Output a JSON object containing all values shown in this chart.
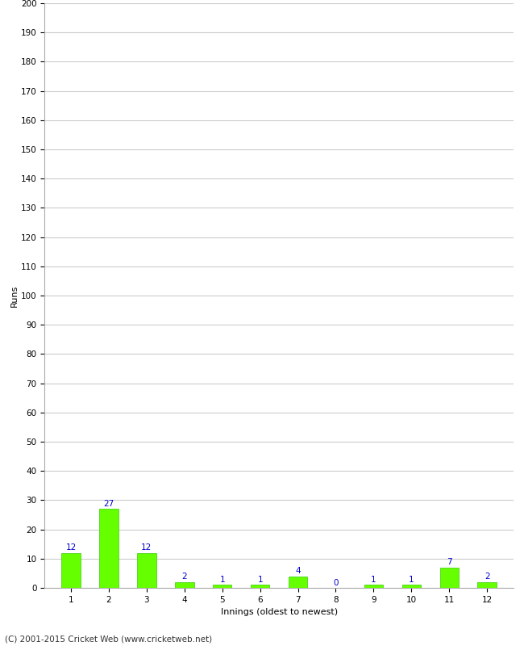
{
  "categories": [
    1,
    2,
    3,
    4,
    5,
    6,
    7,
    8,
    9,
    10,
    11,
    12
  ],
  "values": [
    12,
    27,
    12,
    2,
    1,
    1,
    4,
    0,
    1,
    1,
    7,
    2
  ],
  "bar_color": "#66ff00",
  "bar_edge_color": "#33cc00",
  "label_color": "#0000cc",
  "xlabel": "Innings (oldest to newest)",
  "ylabel": "Runs",
  "ylim": [
    0,
    200
  ],
  "yticks": [
    0,
    10,
    20,
    30,
    40,
    50,
    60,
    70,
    80,
    90,
    100,
    110,
    120,
    130,
    140,
    150,
    160,
    170,
    180,
    190,
    200
  ],
  "footer": "(C) 2001-2015 Cricket Web (www.cricketweb.net)",
  "background_color": "#ffffff",
  "grid_color": "#cccccc",
  "label_fontsize": 7.5,
  "axis_label_fontsize": 8,
  "tick_fontsize": 7.5,
  "footer_fontsize": 7.5
}
